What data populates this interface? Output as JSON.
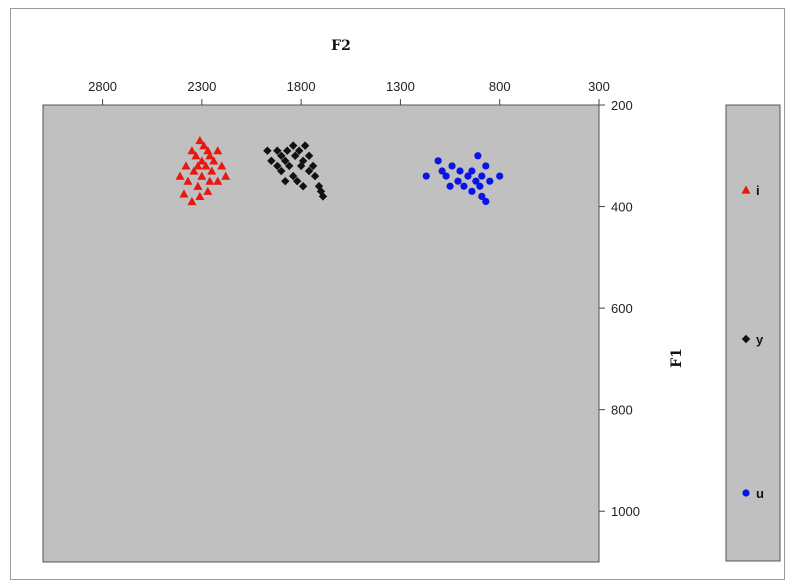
{
  "chart_data": {
    "type": "scatter",
    "title": "",
    "xlabel": "F2",
    "ylabel": "F1",
    "x_axis": {
      "position": "top",
      "reversed": true,
      "range": [
        3100,
        300
      ],
      "ticks": [
        2800,
        2300,
        1800,
        1300,
        800,
        300
      ]
    },
    "y_axis": {
      "position": "right",
      "reversed": true,
      "range": [
        200,
        1100
      ],
      "ticks": [
        200,
        400,
        600,
        800,
        1000
      ]
    },
    "grid": false,
    "plot_background": "#c0c0c0",
    "legend": {
      "position": "right"
    },
    "series": [
      {
        "name": "i",
        "marker": "triangle",
        "color": "#e8170f",
        "points": [
          [
            2310,
            270
          ],
          [
            2290,
            280
          ],
          [
            2270,
            290
          ],
          [
            2350,
            290
          ],
          [
            2220,
            290
          ],
          [
            2330,
            300
          ],
          [
            2260,
            300
          ],
          [
            2240,
            310
          ],
          [
            2300,
            310
          ],
          [
            2380,
            320
          ],
          [
            2200,
            320
          ],
          [
            2320,
            320
          ],
          [
            2280,
            320
          ],
          [
            2250,
            330
          ],
          [
            2340,
            330
          ],
          [
            2410,
            340
          ],
          [
            2180,
            340
          ],
          [
            2300,
            340
          ],
          [
            2220,
            350
          ],
          [
            2260,
            350
          ],
          [
            2370,
            350
          ],
          [
            2320,
            360
          ],
          [
            2270,
            370
          ],
          [
            2390,
            375
          ],
          [
            2310,
            380
          ],
          [
            2350,
            390
          ]
        ]
      },
      {
        "name": "y",
        "marker": "diamond",
        "color": "#111111",
        "points": [
          [
            1780,
            280
          ],
          [
            1840,
            280
          ],
          [
            1920,
            290
          ],
          [
            1810,
            290
          ],
          [
            1870,
            290
          ],
          [
            1970,
            290
          ],
          [
            1900,
            300
          ],
          [
            1760,
            300
          ],
          [
            1830,
            300
          ],
          [
            1950,
            310
          ],
          [
            1790,
            310
          ],
          [
            1880,
            310
          ],
          [
            1740,
            320
          ],
          [
            1860,
            320
          ],
          [
            1920,
            320
          ],
          [
            1800,
            320
          ],
          [
            1900,
            330
          ],
          [
            1760,
            330
          ],
          [
            1840,
            340
          ],
          [
            1730,
            340
          ],
          [
            1820,
            350
          ],
          [
            1880,
            350
          ],
          [
            1710,
            360
          ],
          [
            1790,
            360
          ],
          [
            1700,
            370
          ],
          [
            1690,
            380
          ]
        ]
      },
      {
        "name": "u",
        "marker": "circle",
        "color": "#0a14e6",
        "points": [
          [
            1110,
            310
          ],
          [
            910,
            300
          ],
          [
            1040,
            320
          ],
          [
            870,
            320
          ],
          [
            1090,
            330
          ],
          [
            1000,
            330
          ],
          [
            940,
            330
          ],
          [
            1170,
            340
          ],
          [
            800,
            340
          ],
          [
            1070,
            340
          ],
          [
            960,
            340
          ],
          [
            890,
            340
          ],
          [
            1010,
            350
          ],
          [
            920,
            350
          ],
          [
            850,
            350
          ],
          [
            1050,
            360
          ],
          [
            980,
            360
          ],
          [
            900,
            360
          ],
          [
            940,
            370
          ],
          [
            890,
            380
          ],
          [
            870,
            390
          ]
        ]
      }
    ]
  }
}
